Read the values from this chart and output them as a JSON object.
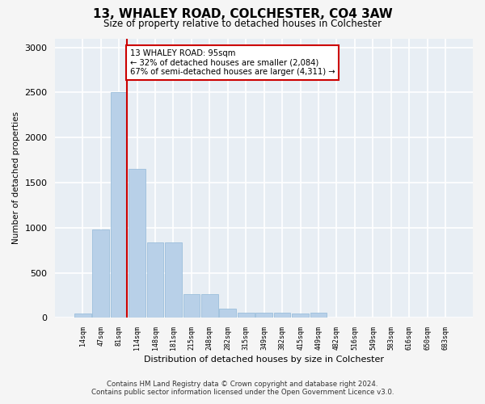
{
  "title": "13, WHALEY ROAD, COLCHESTER, CO4 3AW",
  "subtitle": "Size of property relative to detached houses in Colchester",
  "xlabel": "Distribution of detached houses by size in Colchester",
  "ylabel": "Number of detached properties",
  "categories": [
    "14sqm",
    "47sqm",
    "81sqm",
    "114sqm",
    "148sqm",
    "181sqm",
    "215sqm",
    "248sqm",
    "282sqm",
    "315sqm",
    "349sqm",
    "382sqm",
    "415sqm",
    "449sqm",
    "482sqm",
    "516sqm",
    "549sqm",
    "583sqm",
    "616sqm",
    "650sqm",
    "683sqm"
  ],
  "values": [
    50,
    980,
    2500,
    1650,
    840,
    840,
    260,
    260,
    100,
    55,
    55,
    55,
    50,
    55,
    0,
    0,
    0,
    0,
    0,
    0,
    0
  ],
  "bar_color": "#b8d0e8",
  "bar_edge_color": "#90b8d8",
  "property_line_color": "#cc0000",
  "annotation_text": "13 WHALEY ROAD: 95sqm\n← 32% of detached houses are smaller (2,084)\n67% of semi-detached houses are larger (4,311) →",
  "annotation_box_color": "#ffffff",
  "annotation_box_edge": "#cc0000",
  "ylim": [
    0,
    3100
  ],
  "yticks": [
    0,
    500,
    1000,
    1500,
    2000,
    2500,
    3000
  ],
  "background_color": "#e8eef4",
  "grid_color": "#ffffff",
  "fig_bg_color": "#f5f5f5",
  "footer_line1": "Contains HM Land Registry data © Crown copyright and database right 2024.",
  "footer_line2": "Contains public sector information licensed under the Open Government Licence v3.0."
}
